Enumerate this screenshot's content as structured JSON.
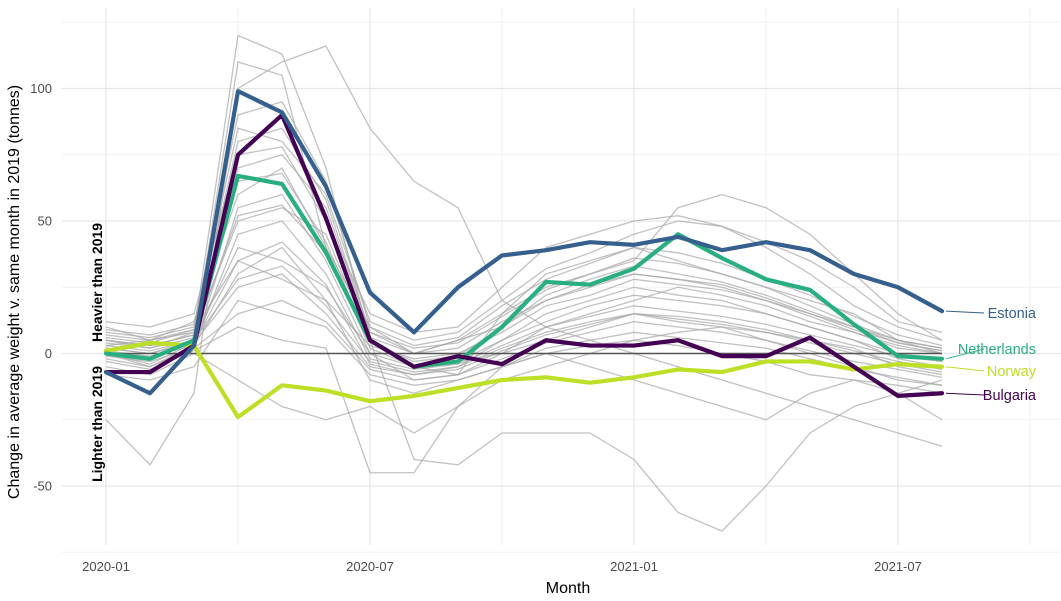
{
  "chart_data": {
    "type": "line",
    "xlabel": "Month",
    "ylabel": "Change in average weight v. same month in 2019 (tonnes)",
    "xlim": [
      0,
      22
    ],
    "ylim": [
      -72,
      125
    ],
    "x_ticks": [
      {
        "x": 0,
        "label": "2020-01"
      },
      {
        "x": 6,
        "label": "2020-07"
      },
      {
        "x": 12,
        "label": "2021-01"
      },
      {
        "x": 18,
        "label": "2021-07"
      }
    ],
    "y_ticks": [
      {
        "y": -50,
        "label": "-50"
      },
      {
        "y": 0,
        "label": "0"
      },
      {
        "y": 50,
        "label": "50"
      },
      {
        "y": 100,
        "label": "100"
      }
    ],
    "zero_line": 0,
    "annotations": {
      "above": "Heavier than 2019",
      "below": "Lighter than 2019"
    },
    "background_series": [
      [
        2,
        0,
        5,
        110,
        105,
        40,
        2,
        -5,
        -3,
        0,
        5,
        10,
        15,
        12,
        10,
        8,
        5,
        2,
        -5,
        -8
      ],
      [
        5,
        2,
        8,
        120,
        113,
        70,
        5,
        -5,
        -8,
        15,
        30,
        35,
        40,
        35,
        30,
        25,
        20,
        15,
        5,
        0
      ],
      [
        0,
        -5,
        3,
        30,
        40,
        20,
        -10,
        -15,
        -10,
        -5,
        0,
        -5,
        -10,
        -15,
        -20,
        -25,
        -15,
        -10,
        -15,
        -25
      ],
      [
        10,
        5,
        12,
        60,
        70,
        40,
        10,
        0,
        5,
        10,
        20,
        25,
        30,
        28,
        25,
        20,
        15,
        10,
        5,
        2
      ],
      [
        -25,
        -42,
        -15,
        100,
        110,
        116,
        85,
        65,
        55,
        20,
        10,
        5,
        0,
        -5,
        -10,
        -15,
        -20,
        -25,
        -30,
        -35
      ],
      [
        3,
        5,
        8,
        50,
        55,
        45,
        5,
        -40,
        -42,
        -30,
        -30,
        -30,
        -40,
        -60,
        -67,
        -50,
        -30,
        -20,
        -15,
        -10
      ],
      [
        5,
        3,
        7,
        70,
        75,
        55,
        8,
        0,
        5,
        15,
        25,
        30,
        35,
        55,
        60,
        55,
        45,
        30,
        15,
        5
      ],
      [
        0,
        -2,
        5,
        40,
        35,
        25,
        0,
        -10,
        -8,
        0,
        10,
        15,
        20,
        25,
        22,
        18,
        12,
        8,
        2,
        0
      ],
      [
        8,
        6,
        10,
        85,
        80,
        60,
        12,
        5,
        8,
        20,
        32,
        38,
        45,
        50,
        48,
        42,
        35,
        25,
        12,
        8
      ],
      [
        -5,
        -8,
        0,
        -10,
        -20,
        -25,
        -20,
        -30,
        -20,
        -10,
        -5,
        0,
        5,
        8,
        10,
        5,
        0,
        -5,
        -10,
        -12
      ],
      [
        2,
        0,
        4,
        25,
        30,
        15,
        -5,
        -8,
        -5,
        5,
        15,
        20,
        25,
        22,
        20,
        15,
        10,
        5,
        0,
        -3
      ],
      [
        12,
        10,
        15,
        75,
        78,
        50,
        15,
        8,
        10,
        25,
        40,
        45,
        50,
        52,
        48,
        40,
        30,
        18,
        10,
        5
      ],
      [
        -2,
        -5,
        2,
        55,
        60,
        35,
        0,
        -5,
        -3,
        5,
        12,
        18,
        22,
        20,
        18,
        15,
        10,
        5,
        -2,
        -5
      ],
      [
        6,
        4,
        9,
        35,
        28,
        20,
        3,
        -2,
        0,
        8,
        18,
        22,
        28,
        26,
        24,
        20,
        14,
        8,
        3,
        0
      ],
      [
        -8,
        -10,
        -5,
        20,
        15,
        10,
        -8,
        -12,
        -10,
        -5,
        0,
        3,
        5,
        3,
        0,
        -3,
        -8,
        -10,
        -12,
        -15
      ],
      [
        4,
        2,
        6,
        65,
        68,
        42,
        4,
        -3,
        -1,
        10,
        22,
        28,
        33,
        30,
        27,
        22,
        16,
        10,
        4,
        1
      ],
      [
        1,
        -1,
        3,
        45,
        50,
        30,
        -2,
        -6,
        -4,
        3,
        10,
        14,
        18,
        16,
        14,
        11,
        7,
        3,
        -1,
        -3
      ],
      [
        9,
        7,
        11,
        90,
        95,
        65,
        10,
        3,
        6,
        18,
        28,
        34,
        40,
        38,
        34,
        28,
        22,
        14,
        7,
        3
      ],
      [
        -3,
        -6,
        1,
        10,
        5,
        2,
        -45,
        -45,
        -20,
        -5,
        2,
        5,
        8,
        6,
        4,
        2,
        -2,
        -6,
        -9,
        -12
      ],
      [
        3,
        1,
        5,
        28,
        33,
        18,
        -3,
        -7,
        -5,
        2,
        8,
        12,
        15,
        14,
        12,
        9,
        5,
        1,
        -3,
        -6
      ],
      [
        7,
        5,
        9,
        80,
        85,
        58,
        8,
        2,
        4,
        14,
        24,
        30,
        36,
        34,
        30,
        25,
        18,
        11,
        5,
        2
      ],
      [
        -1,
        -3,
        2,
        15,
        20,
        12,
        -6,
        -10,
        -8,
        -2,
        4,
        8,
        12,
        10,
        8,
        5,
        1,
        -3,
        -6,
        -9
      ],
      [
        5,
        3,
        7,
        52,
        56,
        38,
        6,
        0,
        2,
        12,
        20,
        26,
        30,
        28,
        26,
        21,
        15,
        9,
        4,
        1
      ],
      [
        0,
        -4,
        4,
        35,
        42,
        26,
        -4,
        -8,
        -6,
        1,
        7,
        11,
        15,
        13,
        11,
        8,
        4,
        0,
        -4,
        -7
      ]
    ],
    "series": [
      {
        "name": "Estonia",
        "color": "#355f8d",
        "values": [
          -7,
          -15,
          3,
          99,
          91,
          63,
          23,
          8,
          25,
          37,
          39,
          42,
          41,
          44,
          39,
          42,
          39,
          30,
          25,
          16
        ]
      },
      {
        "name": "Netherlands",
        "color": "#29af7f",
        "values": [
          0,
          -2,
          5,
          67,
          64,
          38,
          5,
          -5,
          -3,
          10,
          27,
          26,
          32,
          45,
          36,
          28,
          24,
          11,
          -1,
          -2
        ]
      },
      {
        "name": "Norway",
        "color": "#bddf26",
        "values": [
          1,
          4,
          3,
          -24,
          -12,
          -14,
          -18,
          -16,
          -13,
          -10,
          -9,
          -11,
          -9,
          -6,
          -7,
          -3,
          -3,
          -6,
          -4,
          -5
        ]
      },
      {
        "name": "Bulgaria",
        "color": "#440154",
        "values": [
          -7,
          -7,
          3,
          75,
          90,
          51,
          5,
          -5,
          -1,
          -4,
          5,
          3,
          3,
          5,
          -1,
          -1,
          6,
          -5,
          -16,
          -15
        ]
      }
    ]
  }
}
